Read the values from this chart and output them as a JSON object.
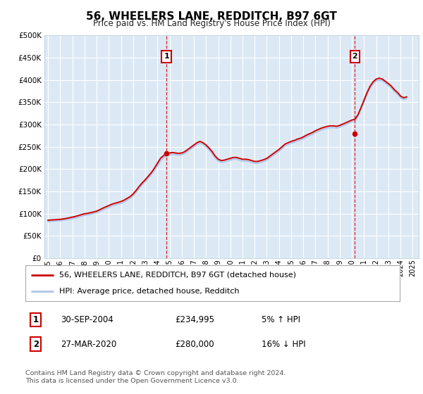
{
  "title": "56, WHEELERS LANE, REDDITCH, B97 6GT",
  "subtitle": "Price paid vs. HM Land Registry's House Price Index (HPI)",
  "ylim": [
    0,
    500000
  ],
  "ytick_vals": [
    0,
    50000,
    100000,
    150000,
    200000,
    250000,
    300000,
    350000,
    400000,
    450000,
    500000
  ],
  "xlim_start": 1994.7,
  "xlim_end": 2025.5,
  "plot_bg_color": "#dce9f5",
  "fig_bg_color": "#ffffff",
  "grid_color": "#ffffff",
  "hpi_line_color": "#aec6e8",
  "price_line_color": "#cc0000",
  "marker1_x": 2004.75,
  "marker1_y": 234995,
  "marker1_label": "1",
  "marker1_date": "30-SEP-2004",
  "marker1_price": "£234,995",
  "marker1_hpi": "5% ↑ HPI",
  "marker2_x": 2020.25,
  "marker2_y": 280000,
  "marker2_label": "2",
  "marker2_date": "27-MAR-2020",
  "marker2_price": "£280,000",
  "marker2_hpi": "16% ↓ HPI",
  "legend_line1": "56, WHEELERS LANE, REDDITCH, B97 6GT (detached house)",
  "legend_line2": "HPI: Average price, detached house, Redditch",
  "footer": "Contains HM Land Registry data © Crown copyright and database right 2024.\nThis data is licensed under the Open Government Licence v3.0.",
  "hpi_data_x": [
    1995.0,
    1995.25,
    1995.5,
    1995.75,
    1996.0,
    1996.25,
    1996.5,
    1996.75,
    1997.0,
    1997.25,
    1997.5,
    1997.75,
    1998.0,
    1998.25,
    1998.5,
    1998.75,
    1999.0,
    1999.25,
    1999.5,
    1999.75,
    2000.0,
    2000.25,
    2000.5,
    2000.75,
    2001.0,
    2001.25,
    2001.5,
    2001.75,
    2002.0,
    2002.25,
    2002.5,
    2002.75,
    2003.0,
    2003.25,
    2003.5,
    2003.75,
    2004.0,
    2004.25,
    2004.5,
    2004.75,
    2005.0,
    2005.25,
    2005.5,
    2005.75,
    2006.0,
    2006.25,
    2006.5,
    2006.75,
    2007.0,
    2007.25,
    2007.5,
    2007.75,
    2008.0,
    2008.25,
    2008.5,
    2008.75,
    2009.0,
    2009.25,
    2009.5,
    2009.75,
    2010.0,
    2010.25,
    2010.5,
    2010.75,
    2011.0,
    2011.25,
    2011.5,
    2011.75,
    2012.0,
    2012.25,
    2012.5,
    2012.75,
    2013.0,
    2013.25,
    2013.5,
    2013.75,
    2014.0,
    2014.25,
    2014.5,
    2014.75,
    2015.0,
    2015.25,
    2015.5,
    2015.75,
    2016.0,
    2016.25,
    2016.5,
    2016.75,
    2017.0,
    2017.25,
    2017.5,
    2017.75,
    2018.0,
    2018.25,
    2018.5,
    2018.75,
    2019.0,
    2019.25,
    2019.5,
    2019.75,
    2020.0,
    2020.25,
    2020.5,
    2020.75,
    2021.0,
    2021.25,
    2021.5,
    2021.75,
    2022.0,
    2022.25,
    2022.5,
    2022.75,
    2023.0,
    2023.25,
    2023.5,
    2023.75,
    2024.0,
    2024.25,
    2024.5
  ],
  "hpi_data_y": [
    82000,
    82500,
    83000,
    83500,
    84000,
    85000,
    86000,
    87000,
    88500,
    90000,
    92000,
    94000,
    96000,
    97000,
    98500,
    100000,
    102000,
    105000,
    108000,
    111000,
    114000,
    117000,
    119000,
    121000,
    123000,
    126000,
    130000,
    134000,
    140000,
    148000,
    157000,
    165000,
    172000,
    180000,
    188000,
    197000,
    207000,
    218000,
    225000,
    230000,
    232000,
    233000,
    232000,
    231000,
    232000,
    235000,
    240000,
    245000,
    250000,
    255000,
    258000,
    255000,
    250000,
    243000,
    235000,
    225000,
    218000,
    215000,
    216000,
    218000,
    220000,
    222000,
    222000,
    220000,
    218000,
    218000,
    217000,
    215000,
    213000,
    213000,
    215000,
    217000,
    220000,
    225000,
    230000,
    235000,
    240000,
    246000,
    252000,
    255000,
    258000,
    260000,
    263000,
    265000,
    268000,
    272000,
    275000,
    278000,
    282000,
    285000,
    288000,
    290000,
    292000,
    293000,
    293000,
    292000,
    294000,
    297000,
    300000,
    303000,
    306000,
    308000,
    318000,
    335000,
    352000,
    368000,
    382000,
    392000,
    398000,
    400000,
    398000,
    393000,
    388000,
    382000,
    374000,
    368000,
    360000,
    356000,
    358000
  ],
  "price_data_x": [
    1995.0,
    1995.25,
    1995.5,
    1995.75,
    1996.0,
    1996.25,
    1996.5,
    1996.75,
    1997.0,
    1997.25,
    1997.5,
    1997.75,
    1998.0,
    1998.25,
    1998.5,
    1998.75,
    1999.0,
    1999.25,
    1999.5,
    1999.75,
    2000.0,
    2000.25,
    2000.5,
    2000.75,
    2001.0,
    2001.25,
    2001.5,
    2001.75,
    2002.0,
    2002.25,
    2002.5,
    2002.75,
    2003.0,
    2003.25,
    2003.5,
    2003.75,
    2004.0,
    2004.25,
    2004.5,
    2004.75,
    2005.0,
    2005.25,
    2005.5,
    2005.75,
    2006.0,
    2006.25,
    2006.5,
    2006.75,
    2007.0,
    2007.25,
    2007.5,
    2007.75,
    2008.0,
    2008.25,
    2008.5,
    2008.75,
    2009.0,
    2009.25,
    2009.5,
    2009.75,
    2010.0,
    2010.25,
    2010.5,
    2010.75,
    2011.0,
    2011.25,
    2011.5,
    2011.75,
    2012.0,
    2012.25,
    2012.5,
    2012.75,
    2013.0,
    2013.25,
    2013.5,
    2013.75,
    2014.0,
    2014.25,
    2014.5,
    2014.75,
    2015.0,
    2015.25,
    2015.5,
    2015.75,
    2016.0,
    2016.25,
    2016.5,
    2016.75,
    2017.0,
    2017.25,
    2017.5,
    2017.75,
    2018.0,
    2018.25,
    2018.5,
    2018.75,
    2019.0,
    2019.25,
    2019.5,
    2019.75,
    2020.0,
    2020.25,
    2020.5,
    2020.75,
    2021.0,
    2021.25,
    2021.5,
    2021.75,
    2022.0,
    2022.25,
    2022.5,
    2022.75,
    2023.0,
    2023.25,
    2023.5,
    2023.75,
    2024.0,
    2024.25,
    2024.5
  ],
  "price_data_y": [
    85000,
    85500,
    86000,
    86500,
    87000,
    88000,
    89000,
    90500,
    92000,
    93500,
    95500,
    97500,
    99500,
    100500,
    102000,
    103500,
    105500,
    108500,
    112000,
    115000,
    118000,
    121000,
    123000,
    125000,
    127000,
    130000,
    134000,
    138000,
    144000,
    152000,
    161000,
    169000,
    176000,
    184000,
    192000,
    202000,
    213000,
    224000,
    230000,
    234995,
    236000,
    237000,
    236000,
    235000,
    236000,
    239000,
    244000,
    249000,
    254000,
    259000,
    262000,
    259000,
    254000,
    247000,
    239000,
    229000,
    222000,
    219000,
    220000,
    222000,
    224000,
    226000,
    226000,
    224000,
    222000,
    222000,
    221000,
    219000,
    217000,
    217000,
    219000,
    221000,
    224000,
    229000,
    234000,
    239000,
    244000,
    250000,
    256000,
    259000,
    262000,
    264000,
    267000,
    269000,
    272000,
    276000,
    279000,
    282000,
    286000,
    289000,
    292000,
    294000,
    296000,
    297000,
    297000,
    296000,
    298000,
    301000,
    304000,
    307000,
    310000,
    312000,
    322000,
    338000,
    355000,
    372000,
    386000,
    396000,
    402000,
    404000,
    402000,
    397000,
    392000,
    386000,
    378000,
    372000,
    364000,
    360000,
    362000
  ]
}
